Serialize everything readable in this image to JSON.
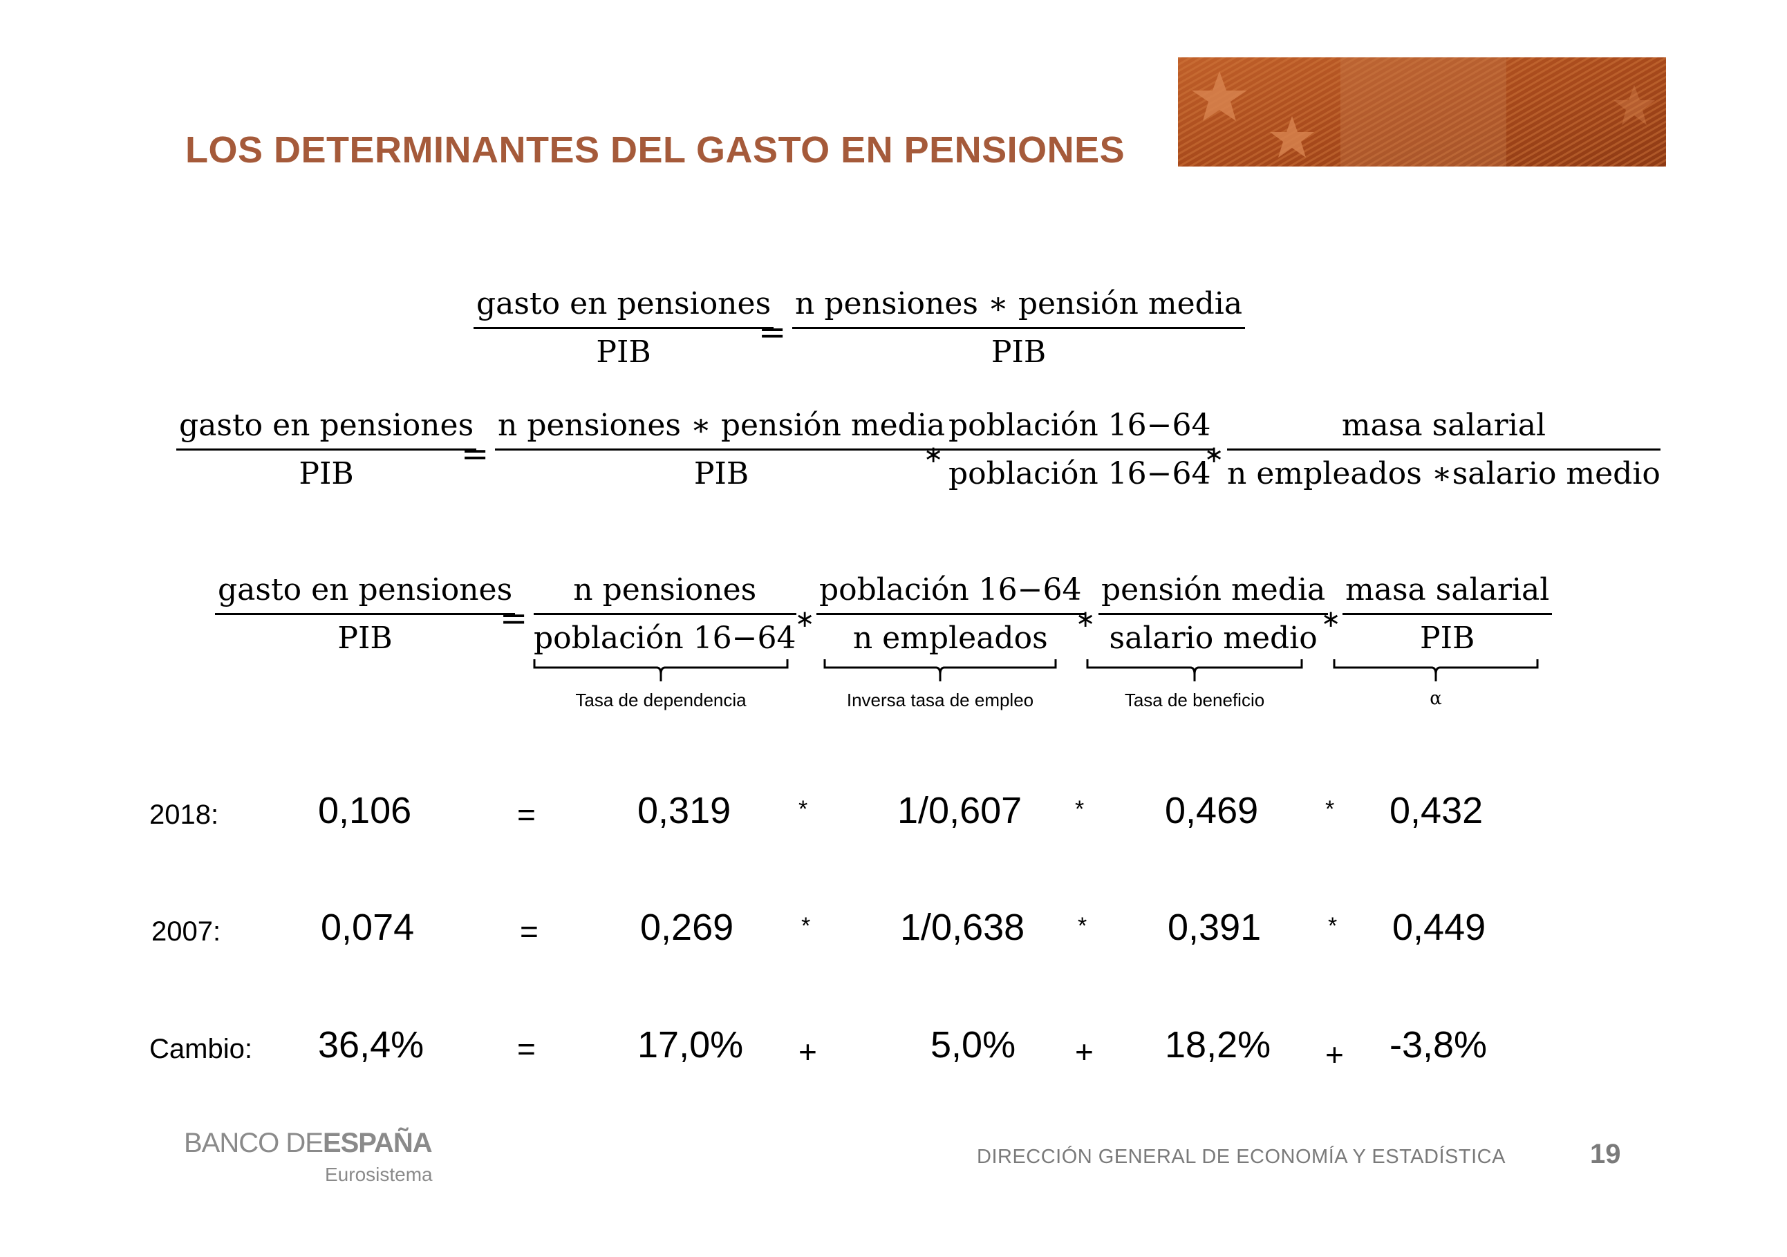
{
  "title": "LOS DETERMINANTES DEL GASTO EN PENSIONES",
  "eq1": {
    "lhs_num": "gasto en pensiones",
    "lhs_den": "PIB",
    "eq": "=",
    "rhs_num": "n pensiones ∗ pensión media",
    "rhs_den": "PIB"
  },
  "eq2": {
    "f1_num": "gasto en pensiones",
    "f1_den": "PIB",
    "eq": "=",
    "f2_num": "n pensiones ∗ pensión media",
    "f2_den": "PIB",
    "star": "∗",
    "f3_num": "población 16−64",
    "f3_den": "población 16−64",
    "f4_num": "masa salarial",
    "f4_den": "n empleados ∗salario medio"
  },
  "eq3": {
    "f1_num": "gasto en pensiones",
    "f1_den": "PIB",
    "eq": "=",
    "f2_num": "n pensiones",
    "f2_den": "población 16−64",
    "star": "∗",
    "f3_num": "población 16−64",
    "f3_den": "n empleados",
    "f4_num": "pensión media",
    "f4_den": "salario medio",
    "f5_num": "masa salarial",
    "f5_den": "PIB",
    "labels": [
      "Tasa de dependencia",
      "Inversa tasa de empleo",
      "Tasa de beneficio",
      "α"
    ]
  },
  "rows": [
    {
      "label": "2018:",
      "values": [
        "0,106",
        "0,319",
        "1/0,607",
        "0,469",
        "0,432"
      ],
      "ops": [
        "=",
        "*",
        "*",
        "*"
      ]
    },
    {
      "label": "2007:",
      "values": [
        "0,074",
        "0,269",
        "1/0,638",
        "0,391",
        "0,449"
      ],
      "ops": [
        "=",
        "*",
        "*",
        "*"
      ]
    },
    {
      "label": "Cambio:",
      "values": [
        "36,4%",
        "17,0%",
        "5,0%",
        "18,2%",
        "-3,8%"
      ],
      "ops": [
        "=",
        "+",
        "+",
        "+"
      ]
    }
  ],
  "footer": {
    "bank_light": "BANCO DE",
    "bank_bold": "ESPAÑA",
    "bank_sub": "Eurosistema",
    "direction": "DIRECCIÓN GENERAL DE ECONOMÍA Y ESTADÍSTICA",
    "page": "19"
  },
  "colors": {
    "title": "#a55a3a",
    "banner": "#b5541f",
    "footer": "#8a8a8a"
  }
}
